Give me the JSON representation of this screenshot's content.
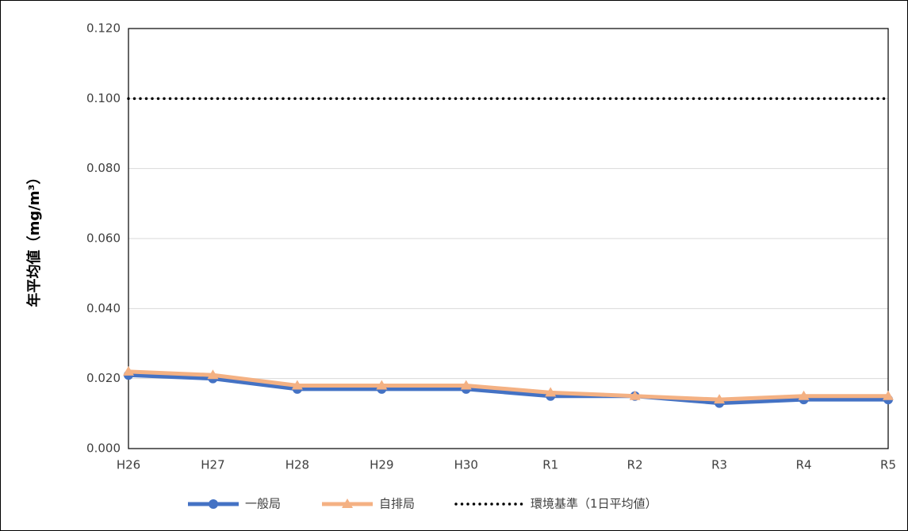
{
  "chart_data": {
    "type": "line",
    "y_label": "年平均値（mg/m³）",
    "categories": [
      "H26",
      "H27",
      "H28",
      "H29",
      "H30",
      "R1",
      "R2",
      "R3",
      "R4",
      "R5"
    ],
    "series": [
      {
        "name": "一般局",
        "color": "#4472c4",
        "marker": "circle",
        "dash": "solid",
        "values": [
          0.021,
          0.02,
          0.017,
          0.017,
          0.017,
          0.015,
          0.015,
          0.013,
          0.014,
          0.014
        ]
      },
      {
        "name": "自排局",
        "color": "#f4b183",
        "marker": "triangle",
        "dash": "solid",
        "values": [
          0.022,
          0.021,
          0.018,
          0.018,
          0.018,
          0.016,
          0.015,
          0.014,
          0.015,
          0.015
        ]
      },
      {
        "name": "環境基準（1日平均値）",
        "color": "#000000",
        "marker": "none",
        "dash": "dotted",
        "values": [
          0.1,
          0.1,
          0.1,
          0.1,
          0.1,
          0.1,
          0.1,
          0.1,
          0.1,
          0.1
        ]
      }
    ],
    "ylim": [
      0,
      0.12
    ],
    "yticks": [
      {
        "value": 0,
        "label": "0.000"
      },
      {
        "value": 0.02,
        "label": "0.020"
      },
      {
        "value": 0.04,
        "label": "0.040"
      },
      {
        "value": 0.06,
        "label": "0.060"
      },
      {
        "value": 0.08,
        "label": "0.080"
      },
      {
        "value": 0.1,
        "label": "0.100"
      },
      {
        "value": 0.12,
        "label": "0.120"
      }
    ],
    "grid": true,
    "legend": "bottom"
  }
}
